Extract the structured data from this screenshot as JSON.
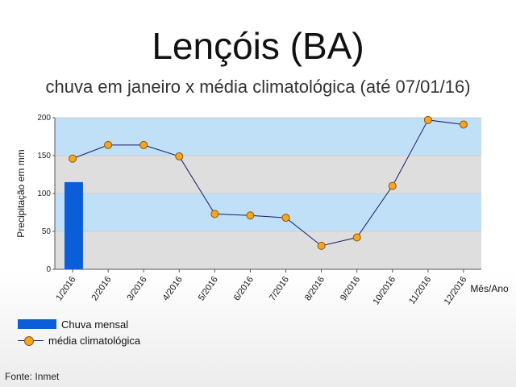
{
  "title": "Lençóis (BA)",
  "subtitle": "chuva em janeiro x média climatológica (até 07/01/16)",
  "source": "Fonte: Inmet",
  "legend": {
    "bar_label": "Chuva mensal",
    "line_label": "média climatológica"
  },
  "colors": {
    "bar": "#0b5ed7",
    "line": "#1a1a66",
    "marker": "#f5a623",
    "band_blue": "#bfe0f7",
    "band_grey": "#dedede"
  },
  "chart_data": {
    "type": "bar",
    "categories": [
      "1/2016",
      "2/2016",
      "3/2016",
      "4/2016",
      "5/2016",
      "6/2016",
      "7/2016",
      "8/2016",
      "9/2016",
      "10/2016",
      "11/2016",
      "12/2016"
    ],
    "ylabel": "Precipitação em mm",
    "xlabel": "Mês/Ano",
    "ylim": [
      0,
      200
    ],
    "yticks": [
      0,
      50,
      100,
      150,
      200
    ],
    "grid": "alternating bands",
    "legend_position": "bottom-left",
    "series": [
      {
        "name": "Chuva mensal",
        "type": "bar",
        "values": [
          115,
          null,
          null,
          null,
          null,
          null,
          null,
          null,
          null,
          null,
          null,
          null
        ]
      },
      {
        "name": "média climatológica",
        "type": "line",
        "values": [
          146,
          164,
          164,
          149,
          73,
          71,
          68,
          31,
          42,
          110,
          197,
          191
        ]
      }
    ]
  }
}
